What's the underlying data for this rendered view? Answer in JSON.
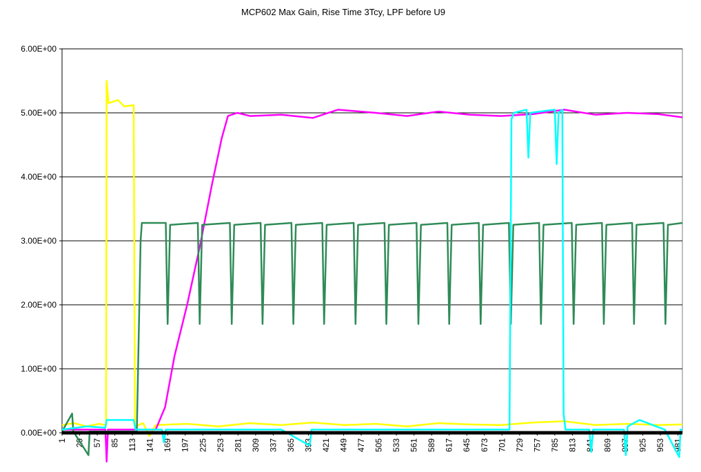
{
  "chart_data": {
    "type": "line",
    "title": "MCP602 Max Gain, Rise Time 3Tcy, LPF before U9",
    "xlim": [
      1,
      988
    ],
    "xticks": [
      1,
      29,
      57,
      85,
      113,
      141,
      169,
      197,
      225,
      253,
      281,
      309,
      337,
      365,
      393,
      421,
      449,
      477,
      505,
      533,
      561,
      589,
      617,
      645,
      673,
      701,
      729,
      757,
      785,
      813,
      841,
      869,
      897,
      925,
      953,
      981
    ],
    "ylim": [
      0,
      6
    ],
    "yticks": [
      {
        "value": 0,
        "label": "0.00E+00"
      },
      {
        "value": 1,
        "label": "1.00E+00"
      },
      {
        "value": 2,
        "label": "2.00E+00"
      },
      {
        "value": 3,
        "label": "3.00E+00"
      },
      {
        "value": 4,
        "label": "4.00E+00"
      },
      {
        "value": 5,
        "label": "5.00E+00"
      },
      {
        "value": 6,
        "label": "6.00E+00"
      }
    ],
    "grid": true,
    "series": [
      {
        "color": "#ffff00",
        "x": [
          1,
          20,
          40,
          60,
          71,
          72,
          75,
          90,
          100,
          115,
          117,
          130,
          140,
          150,
          200,
          250,
          300,
          350,
          400,
          450,
          500,
          550,
          600,
          650,
          700,
          750,
          800,
          850,
          900,
          950,
          988
        ],
        "values": [
          0.12,
          0.15,
          0.1,
          0.14,
          0.12,
          5.5,
          5.15,
          5.2,
          5.1,
          5.12,
          0.1,
          0.15,
          -0.05,
          0.12,
          0.14,
          0.1,
          0.15,
          0.12,
          0.16,
          0.12,
          0.14,
          0.1,
          0.15,
          0.13,
          0.12,
          0.16,
          0.18,
          0.12,
          0.14,
          0.12,
          0.13
        ]
      },
      {
        "color": "#ff00ff",
        "x": [
          1,
          70,
          72,
          74,
          150,
          165,
          180,
          200,
          220,
          240,
          255,
          265,
          280,
          300,
          350,
          400,
          440,
          500,
          550,
          600,
          650,
          700,
          750,
          800,
          850,
          900,
          950,
          988
        ],
        "values": [
          0.05,
          0.05,
          -0.45,
          0.05,
          0.05,
          0.4,
          1.2,
          2.0,
          2.9,
          3.9,
          4.6,
          4.95,
          5.0,
          4.95,
          4.97,
          4.92,
          5.05,
          5.0,
          4.95,
          5.02,
          4.97,
          4.95,
          4.98,
          5.05,
          4.97,
          5.0,
          4.98,
          4.93
        ]
      },
      {
        "color": "#2e8b57",
        "x": [
          1,
          17,
          19,
          43,
          45,
          120,
          126,
          128,
          166,
          169,
          173,
          217,
          220,
          224,
          268,
          271,
          275,
          317,
          320,
          324,
          366,
          369,
          373,
          415,
          418,
          422,
          465,
          468,
          472,
          514,
          517,
          521,
          565,
          568,
          572,
          614,
          617,
          621,
          664,
          667,
          671,
          712,
          715,
          719,
          760,
          763,
          767,
          812,
          815,
          819,
          860,
          863,
          867,
          908,
          911,
          915,
          958,
          961,
          965,
          988
        ],
        "values": [
          0.02,
          0.3,
          0.02,
          -0.35,
          0.02,
          0.02,
          3.0,
          3.28,
          3.28,
          1.7,
          3.25,
          3.28,
          1.7,
          3.25,
          3.28,
          1.7,
          3.25,
          3.28,
          1.7,
          3.25,
          3.28,
          1.7,
          3.25,
          3.28,
          1.7,
          3.25,
          3.28,
          1.7,
          3.25,
          3.28,
          1.7,
          3.25,
          3.28,
          1.7,
          3.25,
          3.28,
          1.7,
          3.25,
          3.28,
          1.7,
          3.25,
          3.28,
          1.7,
          3.25,
          3.28,
          1.7,
          3.25,
          3.28,
          1.7,
          3.25,
          3.28,
          1.7,
          3.25,
          3.28,
          1.7,
          3.25,
          3.28,
          1.7,
          3.25,
          3.28
        ]
      },
      {
        "color": "#00ffff",
        "x": [
          1,
          40,
          70,
          72,
          115,
          118,
          160,
          163,
          166,
          350,
          395,
          398,
          401,
          713,
          716,
          720,
          740,
          743,
          746,
          785,
          788,
          791,
          797,
          799,
          802,
          840,
          843,
          846,
          895,
          898,
          901,
          920,
          960,
          983,
          985,
          988
        ],
        "values": [
          0.05,
          0.1,
          0.08,
          0.2,
          0.2,
          0.05,
          0.05,
          -0.15,
          0.05,
          0.05,
          -0.2,
          0.05,
          0.05,
          0.05,
          4.9,
          5.0,
          5.05,
          4.3,
          5.0,
          5.05,
          4.2,
          5.0,
          5.05,
          0.3,
          0.05,
          0.05,
          -0.3,
          0.05,
          0.05,
          -0.35,
          0.1,
          0.2,
          0.05,
          -0.38,
          0.05,
          0.05
        ]
      },
      {
        "color": "#000000",
        "x": [
          1,
          988
        ],
        "values": [
          0,
          0
        ]
      }
    ]
  }
}
